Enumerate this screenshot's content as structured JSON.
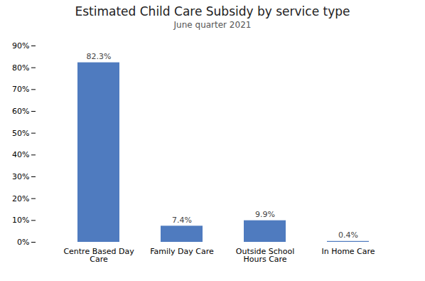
{
  "chart_data": {
    "type": "bar",
    "title": "Estimated Child Care Subsidy by service type",
    "subtitle": "June quarter 2021",
    "categories": [
      "Centre Based Day\nCare",
      "Family Day Care",
      "Outside School\nHours Care",
      "In Home Care"
    ],
    "values": [
      82.3,
      7.4,
      9.9,
      0.4
    ],
    "value_labels": [
      "82.3%",
      "7.4%",
      "9.9%",
      "0.4%"
    ],
    "data_labels": true,
    "color": "#4f7bbf",
    "ylim": [
      0,
      90
    ],
    "yticks": [
      {
        "value": 0,
        "label": "0%"
      },
      {
        "value": 10,
        "label": "10%"
      },
      {
        "value": 20,
        "label": "20%"
      },
      {
        "value": 30,
        "label": "30%"
      },
      {
        "value": 40,
        "label": "40%"
      },
      {
        "value": 50,
        "label": "50%"
      },
      {
        "value": 60,
        "label": "60%"
      },
      {
        "value": 70,
        "label": "70%"
      },
      {
        "value": 80,
        "label": "80%"
      },
      {
        "value": 90,
        "label": "90%"
      }
    ],
    "grid": false
  }
}
